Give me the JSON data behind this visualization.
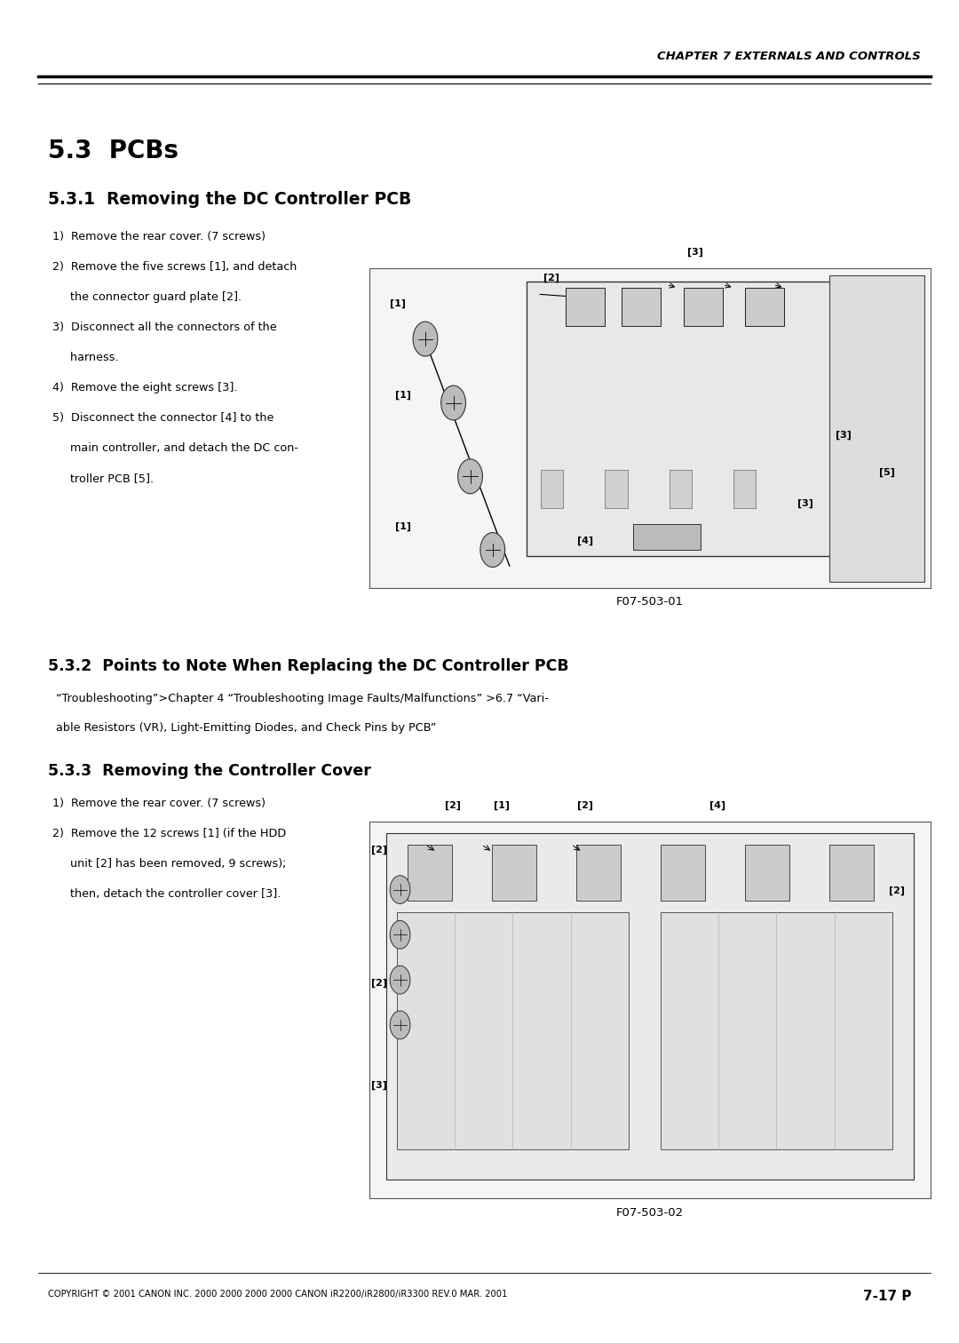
{
  "page_width": 10.8,
  "page_height": 15.12,
  "background_color": "#ffffff",
  "header_text": "CHAPTER 7 EXTERNALS AND CONTROLS",
  "section_53_title": "5.3  PCBs",
  "section_531_title": "5.3.1  Removing the DC Controller PCB",
  "section_531_steps": [
    "1)  Remove the rear cover. (7 screws)",
    "2)  Remove the five screws [1], and detach",
    "     the connector guard plate [2].",
    "3)  Disconnect all the connectors of the",
    "     harness.",
    "4)  Remove the eight screws [3].",
    "5)  Disconnect the connector [4] to the",
    "     main controller, and detach the DC con-",
    "     troller PCB [5]."
  ],
  "fig1_caption": "F07-503-01",
  "section_532_title": "5.3.2  Points to Note When Replacing the DC Controller PCB",
  "section_532_line1": "“Troubleshooting”>Chapter 4 “Troubleshooting Image Faults/Malfunctions” >6.7 “Vari-",
  "section_532_line2": "able Resistors (VR), Light-Emitting Diodes, and Check Pins by PCB”",
  "section_533_title": "5.3.3  Removing the Controller Cover",
  "section_533_steps": [
    "1)  Remove the rear cover. (7 screws)",
    "2)  Remove the 12 screws [1] (if the HDD",
    "     unit [2] has been removed, 9 screws);",
    "     then, detach the controller cover [3]."
  ],
  "fig2_caption": "F07-503-02",
  "footer_text": "COPYRIGHT © 2001 CANON INC. 2000 2000 2000 2000 CANON iR2200/iR2800/iR3300 REV.0 MAR. 2001",
  "footer_page": "7-17 P",
  "text_color": "#000000"
}
